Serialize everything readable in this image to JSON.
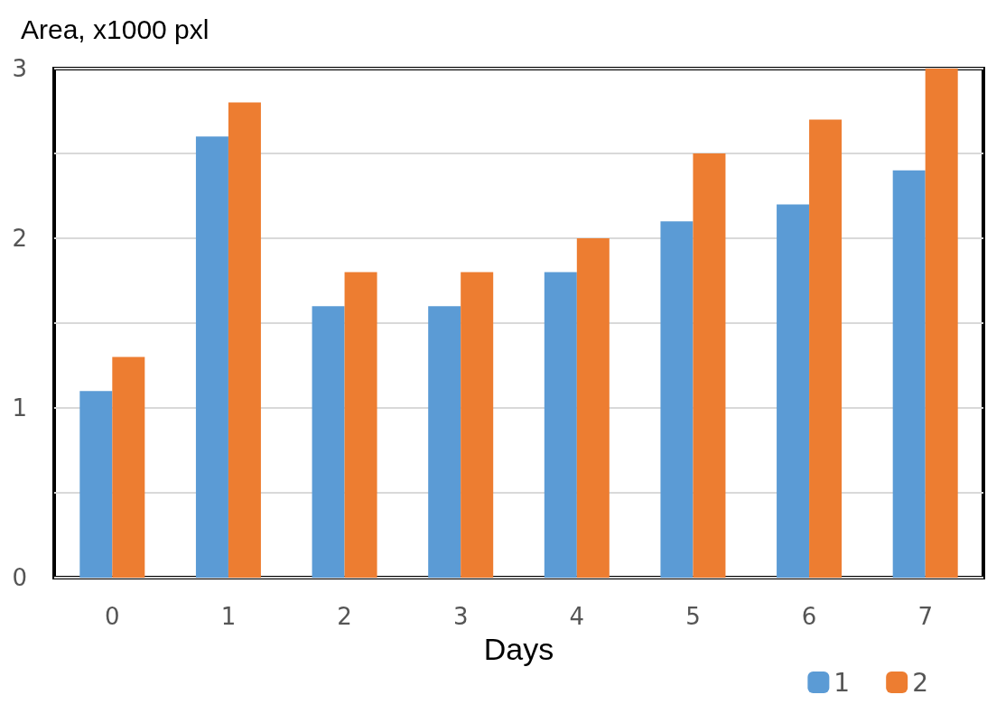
{
  "chart_data": {
    "type": "bar",
    "ylabel": "Area, x1000 pxl",
    "xlabel": "Days",
    "categories": [
      "0",
      "1",
      "2",
      "3",
      "4",
      "5",
      "6",
      "7"
    ],
    "series": [
      {
        "name": "1",
        "color": "#5b9bd5",
        "values": [
          1.1,
          2.6,
          1.6,
          1.6,
          1.8,
          2.1,
          2.2,
          2.4
        ]
      },
      {
        "name": "2",
        "color": "#ed7d31",
        "values": [
          1.3,
          2.8,
          1.8,
          1.8,
          2.0,
          2.5,
          2.7,
          3.0
        ]
      }
    ],
    "ylim": [
      0,
      3
    ],
    "yticks": [
      0,
      {
        "value": 0.5,
        "label": null
      },
      1,
      {
        "value": 1.5,
        "label": null
      },
      2,
      {
        "value": 2.5,
        "label": null
      },
      3
    ],
    "grid": "y",
    "legend": "bottom right"
  }
}
